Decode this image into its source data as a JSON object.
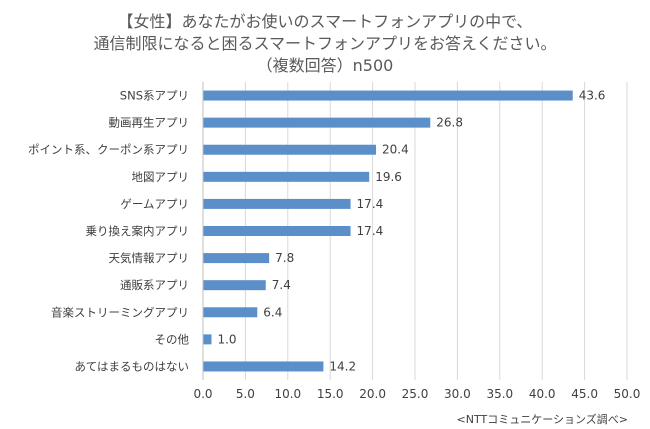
{
  "chart_data": {
    "type": "bar",
    "orientation": "horizontal",
    "title_lines": [
      "【女性】あなたがお使いのスマートフォンアプリの中で、",
      "通信制限になると困るスマートフォンアプリをお答えください。",
      "（複数回答）n500"
    ],
    "categories": [
      "SNS系アプリ",
      "動画再生アプリ",
      "ポイント系、クーポン系アプリ",
      "地図アプリ",
      "ゲームアプリ",
      "乗り換え案内アプリ",
      "天気情報アプリ",
      "通販系アプリ",
      "音楽ストリーミングアプリ",
      "その他",
      "あてはまるものはない"
    ],
    "values": [
      43.6,
      26.8,
      20.4,
      19.6,
      17.4,
      17.4,
      7.8,
      7.4,
      6.4,
      1.0,
      14.2
    ],
    "value_labels": [
      "43.6",
      "26.8",
      "20.4",
      "19.6",
      "17.4",
      "17.4",
      "7.8",
      "7.4",
      "6.4",
      "1.0",
      "14.2"
    ],
    "xlim": [
      0,
      50
    ],
    "xticks": [
      0,
      5,
      10,
      15,
      20,
      25,
      30,
      35,
      40,
      45,
      50
    ],
    "xtick_labels": [
      "0.0",
      "5.0",
      "10.0",
      "15.0",
      "20.0",
      "25.0",
      "30.0",
      "35.0",
      "40.0",
      "45.0",
      "50.0"
    ],
    "grid": true,
    "bar_color": "#5B8FC9",
    "grid_color": "#D9D9D9",
    "source": "<NTTコミュニケーションズ調べ>"
  }
}
